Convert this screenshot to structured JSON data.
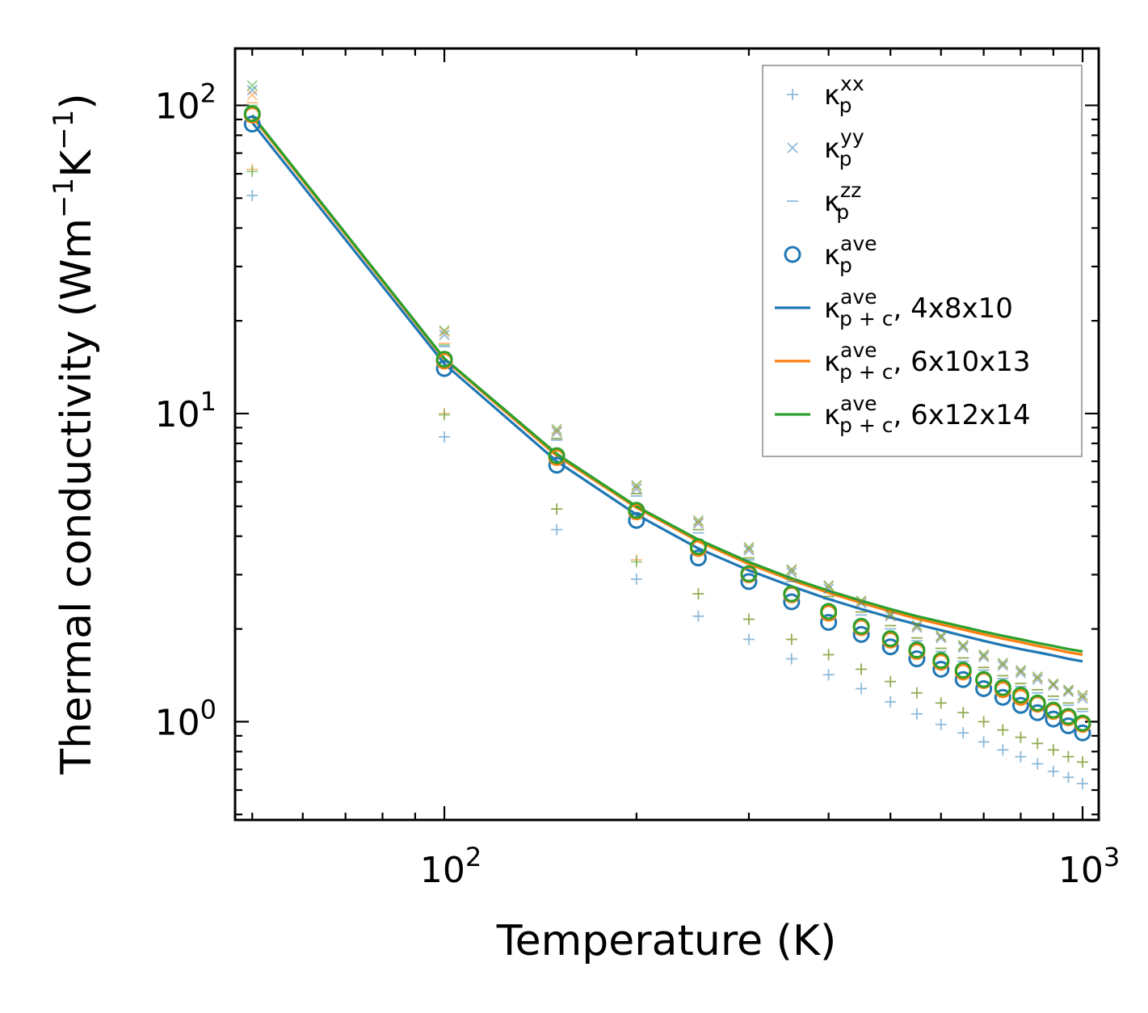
{
  "chart_data": {
    "type": "scatter",
    "xscale": "log",
    "yscale": "log",
    "xlabel": "Temperature (K)",
    "ylabel_prefix": "Thermal conductivity (Wm",
    "ylabel_exp1": "−1",
    "ylabel_mid": "K",
    "ylabel_exp2": "−1",
    "ylabel_suffix": ")",
    "xlim": [
      47,
      1060
    ],
    "ylim": [
      0.48,
      153
    ],
    "xticks": [
      {
        "value": 100,
        "base": "10",
        "exp": "2"
      },
      {
        "value": 1000,
        "base": "10",
        "exp": "3"
      }
    ],
    "yticks": [
      {
        "value": 1,
        "base": "10",
        "exp": "0"
      },
      {
        "value": 10,
        "base": "10",
        "exp": "1"
      },
      {
        "value": 100,
        "base": "10",
        "exp": "2"
      }
    ],
    "legend_position": "top-right",
    "colors": {
      "blue": "#1f77b4",
      "orange": "#ff7f0e",
      "green": "#2ca02c"
    },
    "x": [
      50,
      100,
      150,
      200,
      250,
      300,
      350,
      400,
      450,
      500,
      550,
      600,
      650,
      700,
      750,
      800,
      850,
      900,
      950,
      1000
    ],
    "legend": [
      {
        "symbol": "plus",
        "color": "#1f77b4",
        "base": "κ",
        "sup": "xx",
        "sub": "p",
        "suffix": ""
      },
      {
        "symbol": "cross",
        "color": "#1f77b4",
        "base": "κ",
        "sup": "yy",
        "sub": "p",
        "suffix": ""
      },
      {
        "symbol": "dash",
        "color": "#1f77b4",
        "base": "κ",
        "sup": "zz",
        "sub": "p",
        "suffix": ""
      },
      {
        "symbol": "circle",
        "color": "#1f77b4",
        "base": "κ",
        "sup": "ave",
        "sub": "p",
        "suffix": ""
      },
      {
        "symbol": "line",
        "color": "#1f77b4",
        "base": "κ",
        "sup": "ave",
        "sub": "p + c",
        "suffix": ", 4x8x10"
      },
      {
        "symbol": "line",
        "color": "#ff7f0e",
        "base": "κ",
        "sup": "ave",
        "sub": "p + c",
        "suffix": ", 6x10x13"
      },
      {
        "symbol": "line",
        "color": "#2ca02c",
        "base": "κ",
        "sup": "ave",
        "sub": "p + c",
        "suffix": ", 6x12x14"
      }
    ],
    "series": [
      {
        "name": "kappa_p_xx 4x8x10",
        "marker": "plus",
        "color": "#1f77b4",
        "alpha": 0.5,
        "values": [
          51,
          8.4,
          4.2,
          2.9,
          2.2,
          1.85,
          1.6,
          1.42,
          1.28,
          1.16,
          1.06,
          0.98,
          0.92,
          0.86,
          0.81,
          0.77,
          0.73,
          0.69,
          0.66,
          0.63
        ]
      },
      {
        "name": "kappa_p_xx 6x10x13",
        "marker": "plus",
        "color": "#ff7f0e",
        "alpha": 0.5,
        "values": [
          62,
          10,
          4.9,
          3.35,
          2.6,
          2.15,
          1.85,
          1.65,
          1.48,
          1.35,
          1.24,
          1.15,
          1.07,
          1.0,
          0.94,
          0.89,
          0.85,
          0.81,
          0.77,
          0.74
        ]
      },
      {
        "name": "kappa_p_xx 6x12x14",
        "marker": "plus",
        "color": "#2ca02c",
        "alpha": 0.5,
        "values": [
          61,
          9.9,
          4.9,
          3.3,
          2.6,
          2.15,
          1.85,
          1.65,
          1.48,
          1.35,
          1.24,
          1.15,
          1.07,
          1.0,
          0.94,
          0.89,
          0.85,
          0.81,
          0.77,
          0.74
        ]
      },
      {
        "name": "kappa_p_yy 4x8x10",
        "marker": "cross",
        "color": "#1f77b4",
        "alpha": 0.5,
        "values": [
          112,
          18,
          8.7,
          5.7,
          4.4,
          3.6,
          3.05,
          2.7,
          2.42,
          2.2,
          2.02,
          1.87,
          1.74,
          1.62,
          1.52,
          1.44,
          1.37,
          1.31,
          1.25,
          1.19
        ]
      },
      {
        "name": "kappa_p_yy 6x10x13",
        "marker": "cross",
        "color": "#ff7f0e",
        "alpha": 0.5,
        "values": [
          108,
          18.4,
          8.8,
          5.8,
          4.45,
          3.65,
          3.1,
          2.75,
          2.45,
          2.22,
          2.04,
          1.89,
          1.76,
          1.64,
          1.54,
          1.46,
          1.39,
          1.32,
          1.26,
          1.21
        ]
      },
      {
        "name": "kappa_p_yy 6x12x14",
        "marker": "cross",
        "color": "#2ca02c",
        "alpha": 0.5,
        "values": [
          116,
          18.6,
          8.9,
          5.85,
          4.5,
          3.68,
          3.12,
          2.77,
          2.47,
          2.24,
          2.06,
          1.9,
          1.77,
          1.65,
          1.55,
          1.47,
          1.4,
          1.33,
          1.27,
          1.22
        ]
      },
      {
        "name": "kappa_p_zz 4x8x10",
        "marker": "dash",
        "color": "#1f77b4",
        "alpha": 0.5,
        "values": [
          98,
          16.5,
          8.2,
          5.4,
          4.1,
          3.35,
          2.85,
          2.5,
          2.22,
          2.0,
          1.83,
          1.69,
          1.57,
          1.47,
          1.38,
          1.3,
          1.24,
          1.18,
          1.13,
          1.08
        ]
      },
      {
        "name": "kappa_p_zz 6x10x13",
        "marker": "dash",
        "color": "#ff7f0e",
        "alpha": 0.5,
        "values": [
          102,
          16.9,
          8.3,
          5.5,
          4.2,
          3.4,
          2.9,
          2.55,
          2.27,
          2.05,
          1.87,
          1.73,
          1.61,
          1.5,
          1.41,
          1.33,
          1.27,
          1.21,
          1.15,
          1.1
        ]
      },
      {
        "name": "kappa_p_zz 6x12x14",
        "marker": "dash",
        "color": "#2ca02c",
        "alpha": 0.5,
        "values": [
          100,
          16.7,
          8.3,
          5.5,
          4.2,
          3.4,
          2.9,
          2.55,
          2.27,
          2.05,
          1.87,
          1.73,
          1.61,
          1.5,
          1.41,
          1.33,
          1.27,
          1.21,
          1.15,
          1.1
        ]
      },
      {
        "name": "kappa_p_ave 4x8x10",
        "marker": "circle",
        "color": "#1f77b4",
        "alpha": 1,
        "values": [
          87,
          14,
          6.8,
          4.5,
          3.4,
          2.85,
          2.45,
          2.1,
          1.92,
          1.75,
          1.6,
          1.48,
          1.37,
          1.28,
          1.2,
          1.13,
          1.07,
          1.02,
          0.97,
          0.92
        ]
      },
      {
        "name": "kappa_p_ave 6x10x13",
        "marker": "circle",
        "color": "#ff7f0e",
        "alpha": 1,
        "values": [
          93,
          14.8,
          7.2,
          4.8,
          3.65,
          3.0,
          2.58,
          2.25,
          2.02,
          1.84,
          1.69,
          1.56,
          1.45,
          1.36,
          1.27,
          1.2,
          1.14,
          1.08,
          1.03,
          0.98
        ]
      },
      {
        "name": "kappa_p_ave 6x12x14",
        "marker": "circle",
        "color": "#2ca02c",
        "alpha": 1,
        "values": [
          94,
          15,
          7.3,
          4.85,
          3.7,
          3.02,
          2.6,
          2.28,
          2.04,
          1.86,
          1.71,
          1.58,
          1.47,
          1.37,
          1.29,
          1.22,
          1.15,
          1.09,
          1.04,
          0.99
        ]
      },
      {
        "name": "kappa_pc_ave 4x8x10",
        "marker": "line",
        "color": "#1f77b4",
        "alpha": 1,
        "values": [
          88,
          14.5,
          7.0,
          4.7,
          3.65,
          3.1,
          2.75,
          2.5,
          2.32,
          2.18,
          2.07,
          1.98,
          1.9,
          1.83,
          1.77,
          1.72,
          1.68,
          1.64,
          1.6,
          1.57
        ]
      },
      {
        "name": "kappa_pc_ave 6x10x13",
        "marker": "line",
        "color": "#ff7f0e",
        "alpha": 1,
        "values": [
          92,
          15,
          7.3,
          4.95,
          3.85,
          3.25,
          2.88,
          2.62,
          2.43,
          2.28,
          2.16,
          2.07,
          1.99,
          1.92,
          1.86,
          1.81,
          1.76,
          1.72,
          1.68,
          1.65
        ]
      },
      {
        "name": "kappa_pc_ave 6x12x14",
        "marker": "line",
        "color": "#2ca02c",
        "alpha": 1,
        "values": [
          93,
          15.1,
          7.4,
          5.0,
          3.9,
          3.3,
          2.92,
          2.66,
          2.47,
          2.32,
          2.2,
          2.11,
          2.03,
          1.96,
          1.9,
          1.85,
          1.8,
          1.76,
          1.72,
          1.69
        ]
      }
    ]
  }
}
